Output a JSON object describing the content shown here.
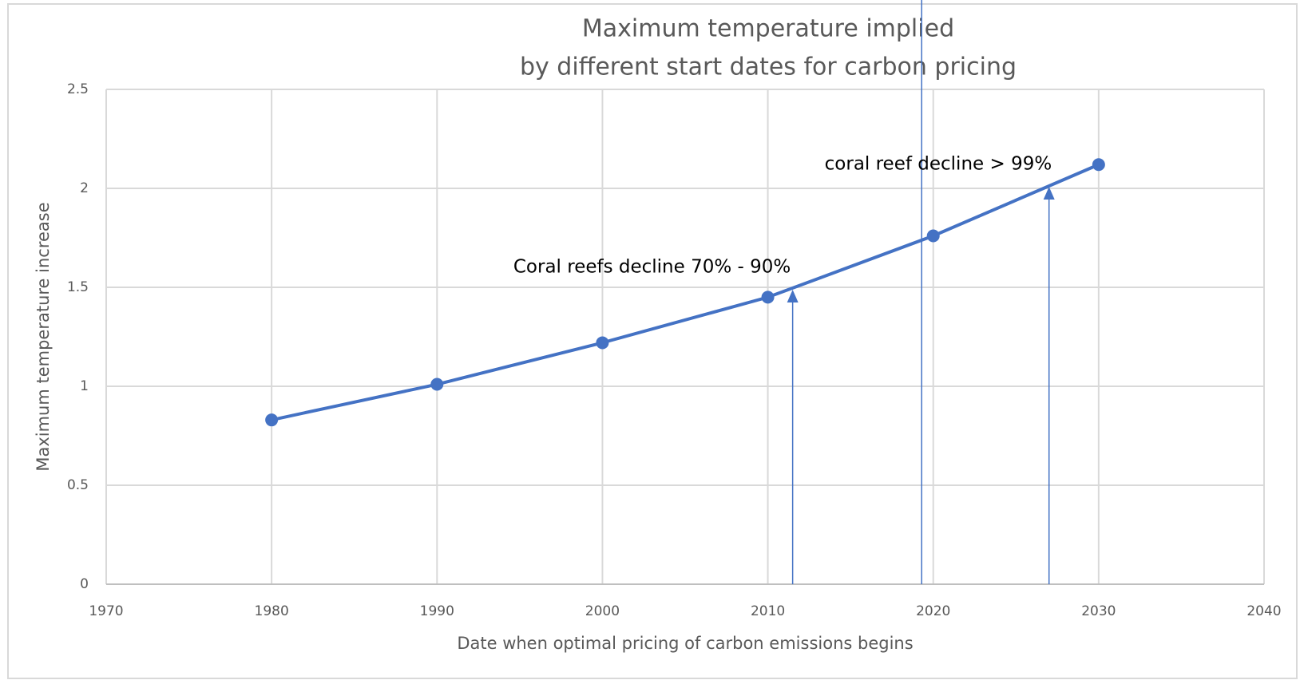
{
  "chart_data": {
    "type": "line",
    "title": [
      "Maximum temperature implied",
      "by different start dates for carbon pricing"
    ],
    "x_label": "Date when optimal pricing of carbon emissions begins",
    "y_label": "Maximum temperature increase",
    "x": [
      1980,
      1990,
      2000,
      2010,
      2020,
      2030
    ],
    "series": [
      {
        "name": "Maximum temperature",
        "color": "#4472c4",
        "values": [
          0.83,
          1.01,
          1.22,
          1.45,
          1.76,
          2.12
        ]
      }
    ],
    "xlim": [
      1970,
      2040
    ],
    "xticks": [
      1970,
      1980,
      1990,
      2000,
      2010,
      2020,
      2030,
      2040
    ],
    "ylim": [
      0,
      2.5
    ],
    "yticks": [
      0,
      0.5,
      1,
      1.5,
      2,
      2.5
    ],
    "grid": true,
    "annotations": [
      {
        "text": "Coral reefs decline 70% - 90%",
        "x": 2003,
        "y": 1.6,
        "arrow_x": 2011.5,
        "arrow_y": 1.48
      },
      {
        "text": "coral reef decline > 99%",
        "x": 2020.3,
        "y": 2.12,
        "arrow_x": 2027,
        "arrow_y": 2.0
      }
    ],
    "vline": 2019.3
  }
}
